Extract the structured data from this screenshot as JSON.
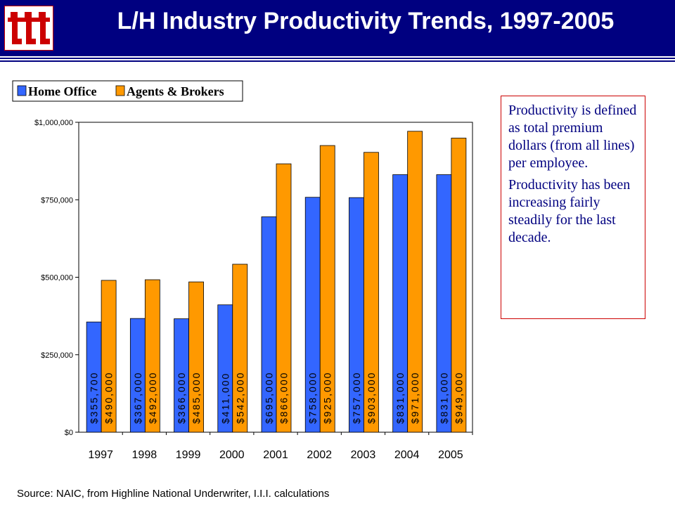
{
  "header": {
    "title": "L/H Industry Productivity Trends, 1997-2005",
    "logo_label": "III"
  },
  "chart_data": {
    "type": "bar",
    "title": "",
    "xlabel": "",
    "ylabel": "",
    "ylim": [
      0,
      1000000
    ],
    "yticks": [
      "$0",
      "$250,000",
      "$500,000",
      "$750,000",
      "$1,000,000"
    ],
    "categories": [
      "1997",
      "1998",
      "1999",
      "2000",
      "2001",
      "2002",
      "2003",
      "2004",
      "2005"
    ],
    "legend_position": "top-left",
    "grid": false,
    "series": [
      {
        "name": "Home Office",
        "color": "#3366ff",
        "values": [
          355700,
          367000,
          366000,
          411000,
          695000,
          758000,
          757000,
          831000,
          831000
        ],
        "labels": [
          "$355,700",
          "$367,000",
          "$366,000",
          "$411,000",
          "$695,000",
          "$758,000",
          "$757,000",
          "$831,000",
          "$831,000"
        ]
      },
      {
        "name": "Agents & Brokers",
        "color": "#ff9900",
        "values": [
          490000,
          492000,
          485000,
          542000,
          866000,
          925000,
          903000,
          971000,
          949000
        ],
        "labels": [
          "$490,000",
          "$492,000",
          "$485,000",
          "$542,000",
          "$866,000",
          "$925,000",
          "$903,000",
          "$971,000",
          "$949,000"
        ]
      }
    ]
  },
  "note": {
    "paragraph1": "Productivity is defined as total premium dollars (from all lines) per employee.",
    "paragraph2": "Productivity has been increasing fairly steadily for the last decade."
  },
  "source": "Source:  NAIC, from Highline National Underwriter, I.I.I. calculations",
  "colors": {
    "header_bg": "#000080",
    "note_text": "#000080",
    "note_border": "#cc0000",
    "logo_red": "#cc0000"
  }
}
